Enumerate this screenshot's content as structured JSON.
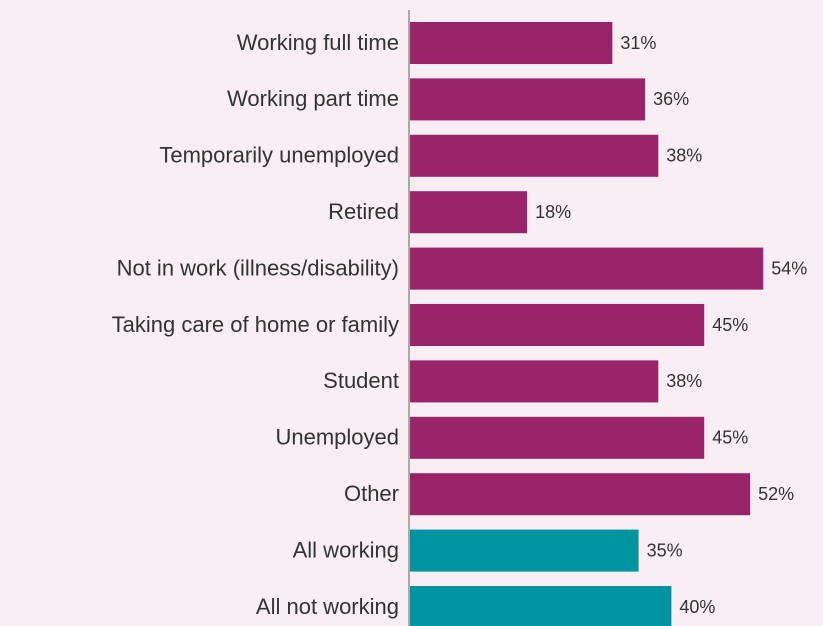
{
  "chart_data": {
    "type": "bar",
    "orientation": "horizontal",
    "categories": [
      "Working full time",
      "Working part time",
      "Temporarily unemployed",
      "Retired",
      "Not in work (illness/disability)",
      "Taking care of home or family",
      "Student",
      "Unemployed",
      "Other",
      "All working",
      "All not working"
    ],
    "values": [
      31,
      36,
      38,
      18,
      54,
      45,
      38,
      45,
      52,
      35,
      40
    ],
    "value_labels": [
      "31%",
      "36%",
      "38%",
      "18%",
      "54%",
      "45%",
      "38%",
      "45%",
      "52%",
      "35%",
      "40%"
    ],
    "colors": [
      "#99246a",
      "#99246a",
      "#99246a",
      "#99246a",
      "#99246a",
      "#99246a",
      "#99246a",
      "#99246a",
      "#99246a",
      "#0093a0",
      "#0093a0"
    ]
  }
}
